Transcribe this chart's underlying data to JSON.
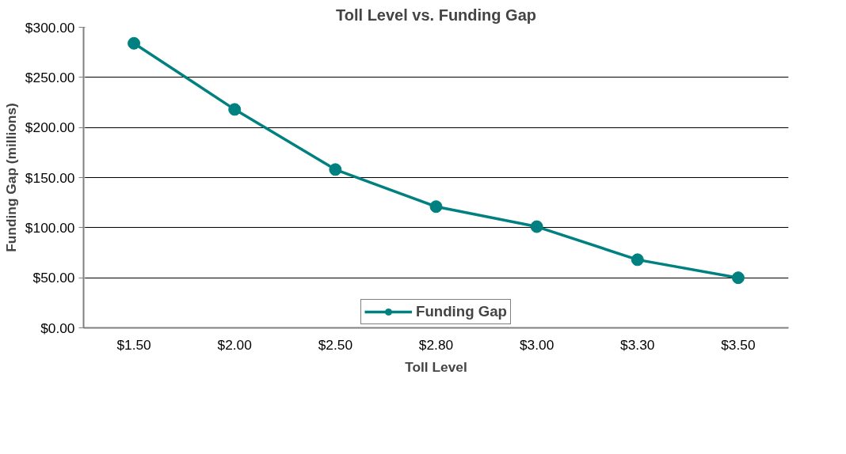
{
  "chart_data": {
    "type": "line",
    "title": "Toll Level vs. Funding Gap",
    "xlabel": "Toll Level",
    "ylabel": "Funding Gap (millions)",
    "categories": [
      "$1.50",
      "$2.00",
      "$2.50",
      "$2.80",
      "$3.00",
      "$3.30",
      "$3.50"
    ],
    "series": [
      {
        "name": "Funding Gap",
        "color": "#008080",
        "values": [
          284,
          218,
          158,
          121,
          101,
          68,
          50
        ]
      }
    ],
    "ylim": [
      0,
      300
    ],
    "yticks": [
      {
        "value": 0,
        "label": "$0.00"
      },
      {
        "value": 50,
        "label": "$50.00"
      },
      {
        "value": 100,
        "label": "$100.00"
      },
      {
        "value": 150,
        "label": "$150.00"
      },
      {
        "value": 200,
        "label": "$200.00"
      },
      {
        "value": 250,
        "label": "$250.00"
      },
      {
        "value": 300,
        "label": "$300.00"
      }
    ],
    "grid": "y",
    "legend": "bottom",
    "marker": "circle",
    "line_style": "solid"
  }
}
